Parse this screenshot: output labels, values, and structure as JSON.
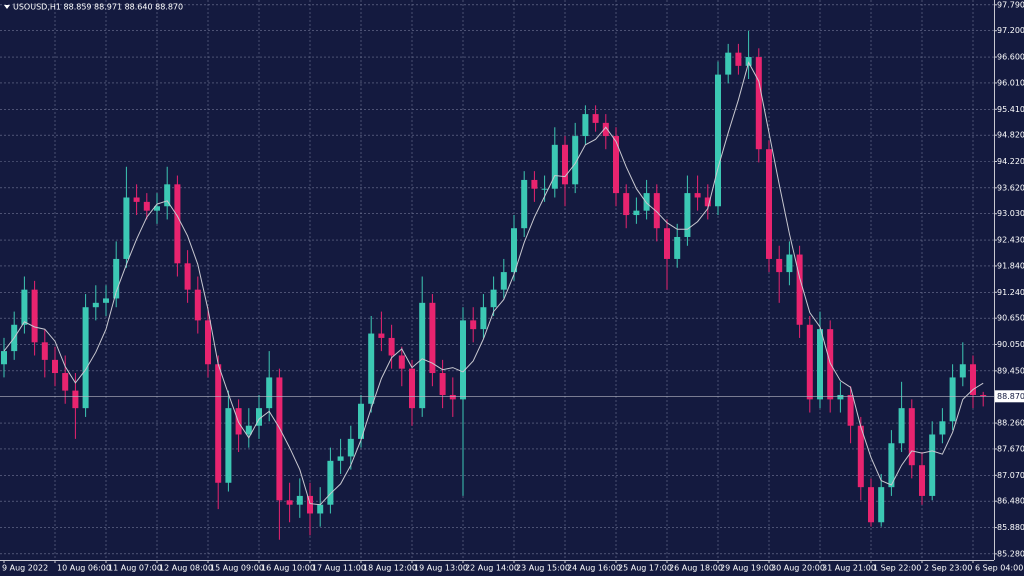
{
  "chart_data": {
    "type": "candlestick",
    "title": "USOUSD,H1  88.859 88.971 88.640 88.870",
    "categories": [
      "9 Aug 2022",
      null,
      null,
      null,
      null,
      "10 Aug 06:00",
      null,
      null,
      null,
      null,
      "11 Aug 07:00",
      null,
      null,
      null,
      null,
      "12 Aug 08:00",
      null,
      null,
      null,
      null,
      "15 Aug 09:00",
      null,
      null,
      null,
      null,
      "16 Aug 10:00",
      null,
      null,
      null,
      null,
      "17 Aug 11:00",
      null,
      null,
      null,
      null,
      "18 Aug 12:00",
      null,
      null,
      null,
      null,
      "19 Aug 13:00",
      null,
      null,
      null,
      null,
      "22 Aug 14:00",
      null,
      null,
      null,
      null,
      "23 Aug 15:00",
      null,
      null,
      null,
      null,
      "24 Aug 16:00",
      null,
      null,
      null,
      null,
      "25 Aug 17:00",
      null,
      null,
      null,
      null,
      "26 Aug 18:00",
      null,
      null,
      null,
      null,
      "29 Aug 19:00",
      null,
      null,
      null,
      null,
      "30 Aug 20:00",
      null,
      null,
      null,
      null,
      "31 Aug 21:00",
      null,
      null,
      null,
      null,
      "1 Sep 22:00",
      null,
      null,
      null,
      null,
      "2 Sep 23:00",
      null,
      null,
      null,
      null,
      "6 Sep 04:00",
      null
    ],
    "open": [
      89.6,
      89.9,
      90.5,
      91.3,
      90.1,
      89.7,
      89.4,
      89.0,
      88.6,
      90.9,
      91.0,
      91.1,
      92.0,
      93.4,
      93.3,
      93.1,
      93.2,
      93.7,
      91.9,
      91.3,
      90.6,
      89.6,
      86.9,
      88.6,
      88.0,
      88.2,
      88.6,
      89.3,
      86.5,
      86.4,
      86.6,
      86.2,
      86.4,
      87.4,
      87.5,
      87.9,
      88.7,
      90.3,
      90.2,
      89.8,
      89.5,
      88.6,
      91.0,
      89.4,
      88.9,
      88.8,
      90.6,
      90.4,
      90.9,
      91.3,
      91.7,
      92.7,
      93.8,
      93.6,
      93.6,
      94.6,
      93.7,
      94.8,
      95.3,
      95.1,
      94.8,
      93.5,
      93.0,
      93.1,
      93.5,
      92.7,
      92.0,
      92.5,
      93.5,
      93.4,
      93.2,
      96.2,
      96.7,
      96.4,
      96.6,
      94.5,
      92.0,
      91.7,
      92.1,
      90.5,
      88.8,
      90.4,
      88.8,
      88.9,
      88.2,
      86.8,
      86.0,
      86.8,
      87.8,
      88.6,
      87.3,
      86.6,
      88.0,
      88.3,
      89.3,
      89.6,
      88.9
    ],
    "high": [
      90.2,
      90.8,
      91.6,
      91.5,
      90.4,
      90.0,
      89.8,
      89.4,
      91.2,
      91.4,
      91.4,
      92.4,
      94.1,
      93.7,
      93.5,
      93.5,
      94.1,
      93.9,
      92.2,
      91.6,
      90.9,
      89.8,
      89.0,
      88.8,
      88.6,
      88.9,
      89.9,
      89.5,
      86.9,
      87.0,
      86.9,
      86.8,
      87.7,
      87.9,
      88.2,
      88.9,
      90.7,
      90.8,
      90.5,
      90.0,
      89.7,
      91.6,
      91.2,
      89.7,
      89.3,
      90.9,
      90.9,
      91.2,
      91.6,
      92.0,
      93.0,
      94.0,
      94.0,
      93.9,
      95.0,
      94.8,
      95.1,
      95.5,
      95.5,
      95.3,
      95.0,
      93.7,
      93.4,
      93.8,
      93.7,
      92.9,
      92.8,
      93.9,
      93.9,
      93.7,
      96.5,
      96.9,
      96.9,
      97.2,
      96.8,
      94.7,
      92.3,
      92.4,
      92.3,
      90.7,
      90.8,
      90.6,
      89.2,
      89.1,
      88.4,
      87.0,
      87.1,
      88.1,
      89.2,
      88.8,
      87.6,
      88.3,
      88.6,
      89.6,
      90.1,
      89.8,
      88.971
    ],
    "low": [
      89.3,
      89.7,
      90.3,
      89.8,
      89.3,
      89.1,
      88.7,
      87.9,
      88.4,
      90.6,
      90.7,
      90.9,
      91.8,
      93.0,
      92.9,
      92.8,
      92.9,
      91.6,
      91.0,
      90.3,
      89.3,
      86.3,
      86.7,
      87.6,
      87.7,
      87.9,
      88.3,
      85.6,
      86.0,
      86.1,
      85.7,
      85.9,
      86.2,
      87.1,
      87.2,
      87.7,
      88.5,
      89.9,
      89.5,
      89.1,
      88.2,
      88.4,
      89.1,
      88.6,
      88.4,
      86.6,
      90.1,
      90.2,
      90.7,
      91.1,
      91.5,
      92.5,
      93.3,
      93.3,
      93.4,
      93.2,
      93.5,
      94.6,
      94.9,
      94.5,
      93.2,
      92.7,
      92.8,
      92.9,
      92.4,
      91.3,
      91.8,
      92.3,
      93.1,
      92.9,
      93.0,
      96.0,
      96.2,
      96.1,
      94.2,
      91.7,
      91.0,
      91.4,
      90.2,
      88.5,
      88.6,
      88.5,
      88.5,
      87.8,
      86.5,
      85.9,
      85.9,
      86.6,
      87.6,
      87.0,
      86.4,
      86.5,
      87.8,
      88.1,
      89.1,
      88.6,
      88.64
    ],
    "close": [
      89.9,
      90.5,
      91.3,
      90.1,
      89.7,
      89.4,
      89.0,
      88.6,
      90.9,
      91.0,
      91.1,
      92.0,
      93.4,
      93.3,
      93.1,
      93.2,
      93.7,
      91.9,
      91.3,
      90.6,
      89.6,
      86.9,
      88.6,
      88.0,
      88.2,
      88.6,
      89.3,
      86.5,
      86.4,
      86.6,
      86.2,
      86.4,
      87.4,
      87.5,
      87.9,
      88.7,
      90.3,
      90.2,
      89.8,
      89.5,
      88.6,
      91.0,
      89.4,
      88.9,
      88.8,
      90.6,
      90.4,
      90.9,
      91.3,
      91.7,
      92.7,
      93.8,
      93.6,
      93.6,
      94.6,
      93.7,
      94.8,
      95.3,
      95.1,
      94.8,
      93.5,
      93.0,
      93.1,
      93.5,
      92.7,
      92.0,
      92.5,
      93.5,
      93.4,
      93.2,
      96.2,
      96.7,
      96.4,
      96.6,
      94.5,
      92.0,
      91.7,
      92.1,
      90.5,
      88.8,
      90.4,
      88.8,
      88.9,
      88.2,
      86.8,
      86.0,
      86.8,
      87.8,
      88.6,
      87.3,
      86.6,
      88.0,
      88.3,
      89.3,
      89.6,
      88.9,
      88.87
    ],
    "up_color": "#3cc8b4",
    "down_color": "#e8246f",
    "ma_color": "#c8c8d0",
    "ylim": [
      85.14,
      97.9
    ],
    "yticks": [
      {
        "value": 97.79,
        "label": "97.790"
      },
      {
        "value": 97.2,
        "label": "97.200"
      },
      {
        "value": 96.6,
        "label": "96.600"
      },
      {
        "value": 96.01,
        "label": "96.010"
      },
      {
        "value": 95.41,
        "label": "95.410"
      },
      {
        "value": 94.82,
        "label": "94.820"
      },
      {
        "value": 94.22,
        "label": "94.220"
      },
      {
        "value": 93.62,
        "label": "93.620"
      },
      {
        "value": 93.03,
        "label": "93.030"
      },
      {
        "value": 92.43,
        "label": "92.430"
      },
      {
        "value": 91.84,
        "label": "91.840"
      },
      {
        "value": 91.24,
        "label": "91.240"
      },
      {
        "value": 90.65,
        "label": "90.650"
      },
      {
        "value": 90.05,
        "label": "90.050"
      },
      {
        "value": 89.45,
        "label": "89.450"
      },
      {
        "value": 88.26,
        "label": "88.260"
      },
      {
        "value": 87.67,
        "label": "87.670"
      },
      {
        "value": 87.07,
        "label": "87.070"
      },
      {
        "value": 86.48,
        "label": "86.480"
      },
      {
        "value": 85.88,
        "label": "85.880"
      },
      {
        "value": 85.28,
        "label": "85.280"
      }
    ],
    "last_price": {
      "value": 88.87,
      "label": "88.870"
    },
    "grid": true
  }
}
